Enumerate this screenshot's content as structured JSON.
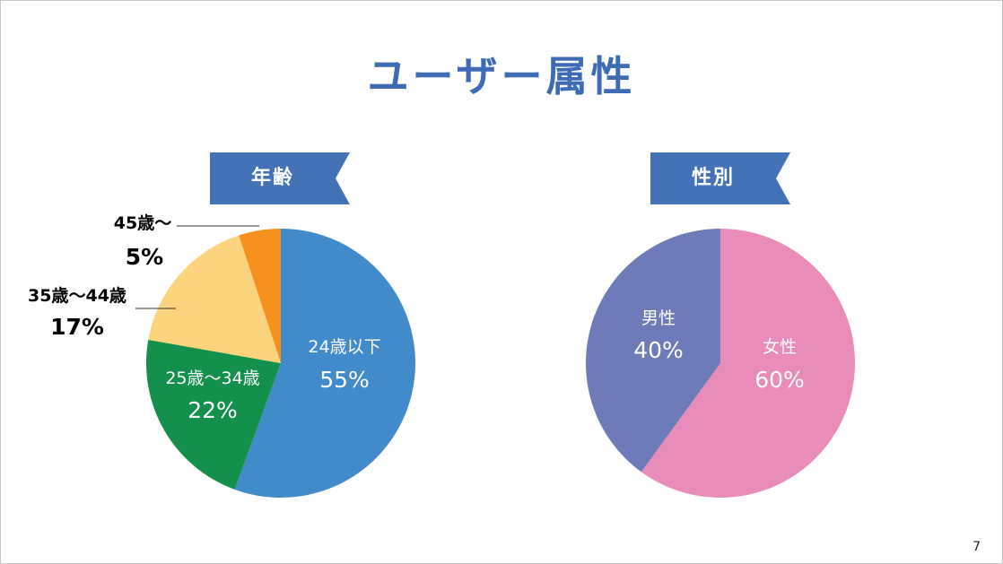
{
  "slide": {
    "title": "ユーザー属性",
    "page_number": "7"
  },
  "colors": {
    "title": "#3d6cb4",
    "ribbon": "#4472b7"
  },
  "chart_data": [
    {
      "type": "pie",
      "title": "年齢",
      "slices": [
        {
          "label": "24歳以下",
          "value": 55,
          "value_text": "55%",
          "color": "#428bca",
          "label_position": "inside"
        },
        {
          "label": "25歳〜34歳",
          "value": 22,
          "value_text": "22%",
          "color": "#12904c",
          "label_position": "inside"
        },
        {
          "label": "35歳〜44歳",
          "value": 17,
          "value_text": "17%",
          "color": "#fcd47d",
          "label_position": "outside"
        },
        {
          "label": "45歳〜",
          "value": 5,
          "value_text": "5%",
          "color": "#f5921f",
          "label_position": "outside"
        }
      ],
      "start": "top",
      "direction": "clockwise"
    },
    {
      "type": "pie",
      "title": "性別",
      "slices": [
        {
          "label": "女性",
          "value": 60,
          "value_text": "60%",
          "color": "#e98cb9",
          "label_position": "inside"
        },
        {
          "label": "男性",
          "value": 40,
          "value_text": "40%",
          "color": "#6f7bb9",
          "label_position": "inside"
        }
      ],
      "start": "top",
      "direction": "clockwise"
    }
  ]
}
